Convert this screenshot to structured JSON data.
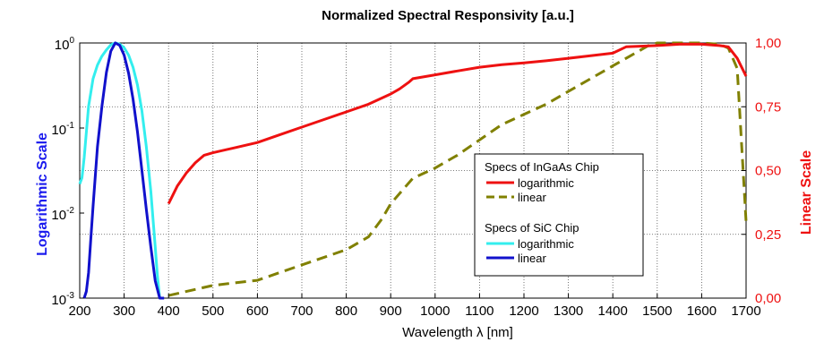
{
  "chart_data": {
    "type": "line",
    "title": "Normalized Spectral Responsivity [a.u.]",
    "xlabel": "Wavelength λ [nm]",
    "ylabel_left": "Logarithmic Scale",
    "ylabel_right": "Linear Scale",
    "xlim": [
      200,
      1700
    ],
    "ylim_left": [
      0.001,
      1
    ],
    "ylim_right": [
      0,
      1
    ],
    "left_scale": "log",
    "right_scale": "linear",
    "grid": true,
    "legend_position": "center-right",
    "x_ticks": [
      "200",
      "300",
      "400",
      "500",
      "600",
      "700",
      "800",
      "900",
      "1000",
      "1100",
      "1200",
      "1300",
      "1400",
      "1500",
      "1600",
      "1700"
    ],
    "x_tick_values": [
      200,
      300,
      400,
      500,
      600,
      700,
      800,
      900,
      1000,
      1100,
      1200,
      1300,
      1400,
      1500,
      1600,
      1700
    ],
    "left_ticks": [
      {
        "value": 1,
        "base": "10",
        "exp": "0"
      },
      {
        "value": 0.1,
        "base": "10",
        "exp": "-1"
      },
      {
        "value": 0.01,
        "base": "10",
        "exp": "-2"
      },
      {
        "value": 0.001,
        "base": "10",
        "exp": "-3"
      }
    ],
    "right_ticks": [
      {
        "value": 1.0,
        "label": "1,00"
      },
      {
        "value": 0.75,
        "label": "0,75"
      },
      {
        "value": 0.5,
        "label": "0,50"
      },
      {
        "value": 0.25,
        "label": "0,25"
      },
      {
        "value": 0.0,
        "label": "0,00"
      }
    ],
    "legend": {
      "group1_title": "Specs of InGaAs Chip",
      "group1_items": [
        "logarithmic",
        "linear"
      ],
      "group2_title": "Specs of SiC Chip",
      "group2_items": [
        "logarithmic",
        "linear"
      ]
    },
    "series": [
      {
        "name": "logarithmic",
        "group": "Specs of InGaAs Chip",
        "axis": "right",
        "color": "#ee1111",
        "dash": "solid",
        "x": [
          400,
          420,
          440,
          460,
          480,
          500,
          550,
          600,
          650,
          700,
          750,
          800,
          850,
          900,
          920,
          940,
          950,
          1000,
          1050,
          1100,
          1150,
          1200,
          1250,
          1300,
          1350,
          1400,
          1430,
          1500,
          1550,
          1600,
          1640,
          1660,
          1680,
          1700
        ],
        "y": [
          0.37,
          0.44,
          0.49,
          0.53,
          0.56,
          0.57,
          0.59,
          0.61,
          0.64,
          0.67,
          0.7,
          0.73,
          0.76,
          0.8,
          0.82,
          0.845,
          0.86,
          0.875,
          0.89,
          0.905,
          0.915,
          0.922,
          0.93,
          0.94,
          0.95,
          0.96,
          0.985,
          0.99,
          0.995,
          0.995,
          0.99,
          0.985,
          0.94,
          0.87
        ]
      },
      {
        "name": "linear",
        "group": "Specs of InGaAs Chip",
        "axis": "right",
        "color": "#808000",
        "dash": "dashed",
        "x": [
          400,
          450,
          500,
          550,
          600,
          650,
          700,
          750,
          800,
          850,
          880,
          900,
          930,
          950,
          1000,
          1050,
          1100,
          1150,
          1200,
          1250,
          1300,
          1350,
          1400,
          1440,
          1480,
          1500,
          1550,
          1600,
          1640,
          1660,
          1680,
          1700
        ],
        "y": [
          0.01,
          0.03,
          0.05,
          0.06,
          0.07,
          0.1,
          0.13,
          0.16,
          0.19,
          0.24,
          0.31,
          0.37,
          0.43,
          0.47,
          0.51,
          0.56,
          0.62,
          0.68,
          0.72,
          0.76,
          0.81,
          0.86,
          0.91,
          0.95,
          0.99,
          1.0,
          1.0,
          1.0,
          0.995,
          0.98,
          0.9,
          0.3
        ]
      },
      {
        "name": "logarithmic",
        "group": "Specs of SiC Chip",
        "axis": "left",
        "color": "#33eeee",
        "dash": "solid",
        "x": [
          200,
          205,
          210,
          220,
          230,
          240,
          250,
          260,
          270,
          280,
          290,
          300,
          310,
          320,
          330,
          340,
          350,
          360,
          370,
          375,
          380
        ],
        "y": [
          0.022,
          0.026,
          0.045,
          0.18,
          0.38,
          0.55,
          0.7,
          0.83,
          0.95,
          1.0,
          0.97,
          0.88,
          0.72,
          0.52,
          0.32,
          0.16,
          0.06,
          0.018,
          0.004,
          0.0018,
          0.001
        ]
      },
      {
        "name": "linear",
        "group": "Specs of SiC Chip",
        "axis": "left",
        "color": "#1111cc",
        "dash": "solid",
        "x": [
          210,
          215,
          220,
          225,
          230,
          240,
          250,
          260,
          270,
          280,
          290,
          300,
          310,
          320,
          330,
          340,
          350,
          360,
          370,
          380,
          390
        ],
        "y": [
          0.001,
          0.0012,
          0.002,
          0.005,
          0.012,
          0.06,
          0.18,
          0.45,
          0.8,
          1.0,
          0.94,
          0.72,
          0.44,
          0.22,
          0.09,
          0.032,
          0.011,
          0.004,
          0.0016,
          0.001,
          0.001
        ]
      }
    ]
  }
}
